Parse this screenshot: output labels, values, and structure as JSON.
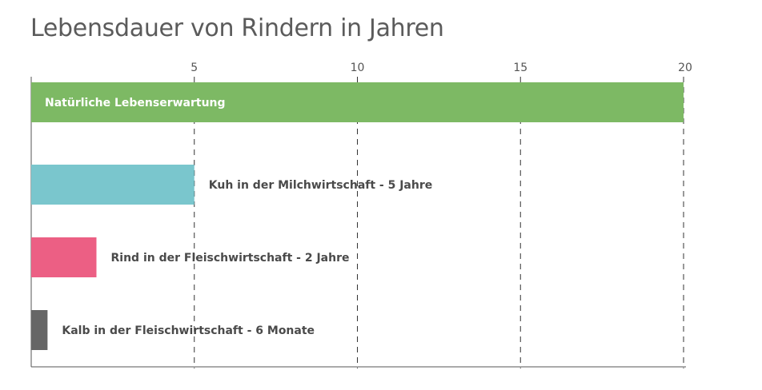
{
  "chart_data": {
    "type": "bar",
    "orientation": "horizontal",
    "title": "Lebensdauer von Rindern in Jahren",
    "xlim": [
      0,
      20
    ],
    "xticks": [
      5,
      10,
      15,
      20
    ],
    "grid": true,
    "categories": [
      "Natürliche Lebenserwartung",
      "Kuh in der Milchwirtschaft - 5 Jahre",
      "Rind in der Fleischwirtschaft - 2 Jahre",
      "Kalb in der Fleischwirtschaft - 6 Monate"
    ],
    "values": [
      20,
      5,
      2,
      0.5
    ],
    "colors": [
      "#7db964",
      "#7ac6cd",
      "#ec5f84",
      "#666666"
    ]
  }
}
